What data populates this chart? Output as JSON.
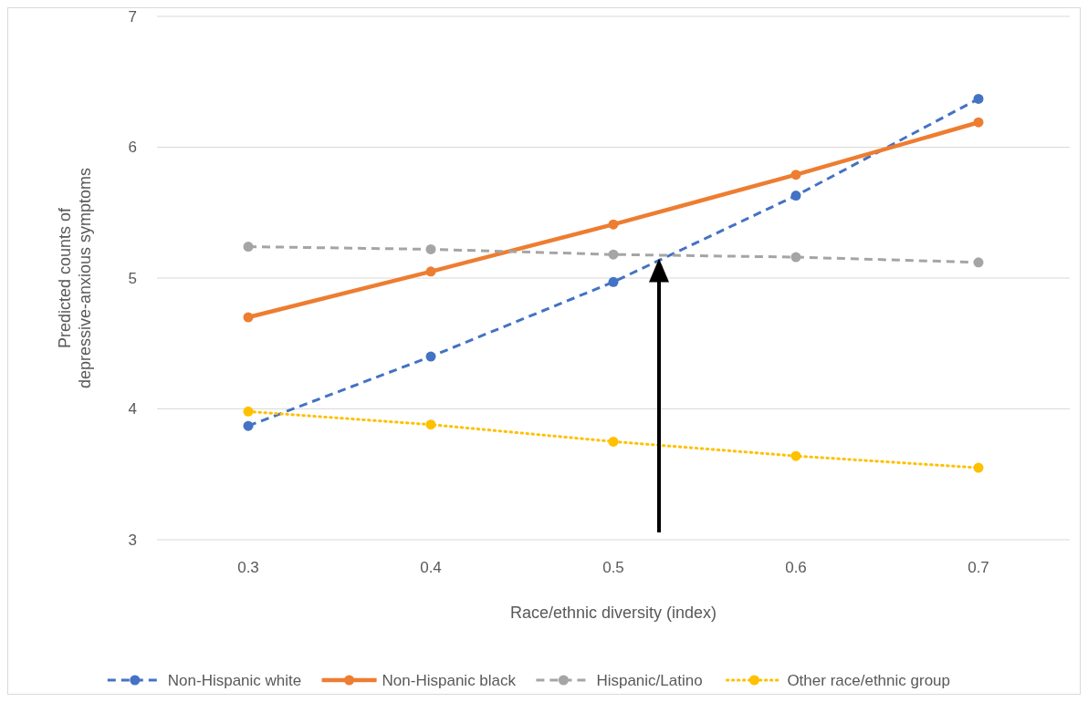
{
  "chart_data": {
    "type": "line",
    "xlabel": "Race/ethnic diversity (index)",
    "ylabel": "Predicted counts of\ndepressive-anxious symptoms",
    "categories": [
      "0.3",
      "0.4",
      "0.5",
      "0.6",
      "0.7"
    ],
    "ylim": [
      3,
      7
    ],
    "yticks": [
      3,
      4,
      5,
      6,
      7
    ],
    "grid": "y",
    "legend": "bottom",
    "marker": "circle",
    "series": [
      {
        "name": "Non-Hispanic white",
        "color": "#4472c4",
        "line_style": "dashed",
        "values": [
          3.87,
          4.4,
          4.97,
          5.63,
          6.37
        ]
      },
      {
        "name": "Non-Hispanic black",
        "color": "#ed7d31",
        "line_style": "solid",
        "values": [
          4.7,
          5.05,
          5.41,
          5.79,
          6.19
        ]
      },
      {
        "name": "Hispanic/Latino",
        "color": "#a5a5a5",
        "line_style": "dashed",
        "values": [
          5.24,
          5.22,
          5.18,
          5.16,
          5.12
        ]
      },
      {
        "name": "Other race/ethnic group",
        "color": "#ffc000",
        "line_style": "dotted",
        "values": [
          3.98,
          3.88,
          3.75,
          3.64,
          3.55
        ]
      }
    ]
  }
}
